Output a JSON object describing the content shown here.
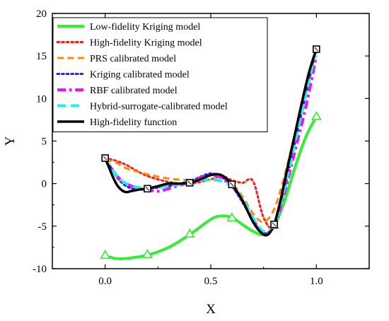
{
  "chart_data": {
    "type": "line",
    "xlabel": "X",
    "ylabel": "Y",
    "xlim": [
      -0.25,
      1.25
    ],
    "ylim": [
      -10,
      20
    ],
    "xticks": [
      0.0,
      0.5,
      1.0
    ],
    "xtick_labels": [
      "0.0",
      "0.5",
      "1.0"
    ],
    "yticks": [
      -10,
      -5,
      0,
      5,
      10,
      15,
      20
    ],
    "ytick_labels": [
      "-10",
      "-5",
      "0",
      "5",
      "10",
      "15",
      "20"
    ],
    "grid": false,
    "legend": "top-left",
    "series": [
      {
        "name": "Low-fidelity Kriging model",
        "color": "#33ee33",
        "style": "solid",
        "width": 4,
        "x": [
          0.0,
          0.05,
          0.1,
          0.2,
          0.3,
          0.4,
          0.5,
          0.55,
          0.6,
          0.65,
          0.7,
          0.75,
          0.8,
          0.85,
          0.9,
          0.95,
          1.0
        ],
        "y": [
          -8.5,
          -8.8,
          -8.8,
          -8.4,
          -7.5,
          -6.0,
          -4.2,
          -3.8,
          -4.0,
          -4.8,
          -5.6,
          -6.0,
          -5.0,
          -2.0,
          2.0,
          5.5,
          7.9
        ]
      },
      {
        "name": "High-fidelity Kriging model",
        "color": "#ee2222",
        "style": "dotted",
        "width": 3,
        "x": [
          0.0,
          0.05,
          0.1,
          0.15,
          0.2,
          0.3,
          0.4,
          0.5,
          0.55,
          0.6,
          0.65,
          0.7,
          0.75,
          0.8,
          0.85,
          0.9,
          0.95,
          1.0
        ],
        "y": [
          3.0,
          2.7,
          2.2,
          1.5,
          0.9,
          0.2,
          0.0,
          0.5,
          0.9,
          0.4,
          0.1,
          0.3,
          -4.0,
          -5.0,
          0.0,
          6.0,
          11.0,
          15.8
        ]
      },
      {
        "name": "PRS calibrated model",
        "color": "#ff8811",
        "style": "dashed",
        "width": 3,
        "x": [
          0.0,
          0.05,
          0.1,
          0.2,
          0.3,
          0.4,
          0.5,
          0.55,
          0.6,
          0.65,
          0.7,
          0.75,
          0.8,
          0.85,
          0.9,
          0.95,
          1.0
        ],
        "y": [
          2.8,
          2.5,
          1.8,
          1.1,
          0.6,
          0.4,
          0.4,
          0.3,
          0.0,
          -1.5,
          -3.5,
          -4.5,
          -3.0,
          1.0,
          6.0,
          11.0,
          15.8
        ]
      },
      {
        "name": "Kriging calibrated model",
        "color": "#2222ee",
        "style": "dotted",
        "width": 3,
        "x": [
          0.0,
          0.03,
          0.06,
          0.1,
          0.15,
          0.2,
          0.3,
          0.4,
          0.45,
          0.5,
          0.55,
          0.6,
          0.65,
          0.7,
          0.75,
          0.8,
          0.85,
          0.9,
          0.95,
          1.0
        ],
        "y": [
          3.0,
          1.8,
          0.6,
          -0.3,
          -0.7,
          -0.6,
          -0.3,
          0.3,
          0.8,
          1.2,
          0.8,
          -0.3,
          -2.2,
          -4.3,
          -5.8,
          -5.0,
          -0.5,
          5.0,
          10.5,
          15.8
        ]
      },
      {
        "name": "RBF calibrated model",
        "color": "#ee11ee",
        "style": "dashdot",
        "width": 4,
        "x": [
          0.0,
          0.03,
          0.06,
          0.1,
          0.15,
          0.2,
          0.25,
          0.3,
          0.4,
          0.45,
          0.5,
          0.55,
          0.6,
          0.65,
          0.7,
          0.75,
          0.8,
          0.85,
          0.9,
          0.95,
          1.0
        ],
        "y": [
          3.0,
          1.8,
          0.8,
          0.0,
          -0.5,
          -0.7,
          -0.9,
          -0.6,
          0.2,
          0.7,
          1.0,
          0.7,
          -0.3,
          -2.0,
          -4.2,
          -5.8,
          -5.0,
          -1.0,
          4.0,
          9.0,
          15.0
        ]
      },
      {
        "name": "Hybrid-surrogate-calibrated model",
        "color": "#22eeee",
        "style": "dashed",
        "width": 4,
        "x": [
          0.0,
          0.03,
          0.06,
          0.1,
          0.15,
          0.2,
          0.3,
          0.4,
          0.45,
          0.5,
          0.55,
          0.6,
          0.65,
          0.7,
          0.75,
          0.8,
          0.85,
          0.9,
          0.95,
          1.0
        ],
        "y": [
          3.0,
          1.8,
          0.8,
          0.0,
          -0.4,
          -0.5,
          -0.3,
          0.2,
          0.4,
          0.5,
          0.3,
          -0.3,
          -1.8,
          -4.0,
          -5.6,
          -4.8,
          -0.5,
          5.0,
          10.5,
          15.8
        ]
      },
      {
        "name": "High-fidelity function",
        "color": "#000000",
        "style": "solid",
        "width": 3.5,
        "x": [
          0.0,
          0.02,
          0.04,
          0.06,
          0.08,
          0.1,
          0.12,
          0.14,
          0.16,
          0.2,
          0.25,
          0.3,
          0.35,
          0.4,
          0.45,
          0.5,
          0.55,
          0.6,
          0.65,
          0.7,
          0.74,
          0.77,
          0.8,
          0.83,
          0.86,
          0.9,
          0.94,
          0.97,
          1.0
        ],
        "y": [
          3.0,
          1.8,
          0.6,
          -0.3,
          -0.8,
          -1.0,
          -0.9,
          -0.8,
          -0.7,
          -0.6,
          -0.3,
          0.0,
          0.0,
          0.1,
          0.5,
          1.0,
          1.0,
          -0.1,
          -2.0,
          -4.5,
          -5.8,
          -6.0,
          -4.8,
          -2.0,
          1.5,
          6.0,
          10.5,
          13.5,
          15.8
        ]
      }
    ],
    "markers": [
      {
        "series": "Low-fidelity Kriging model",
        "shape": "triangle",
        "color": "#33ee33",
        "x": [
          0.0,
          0.2,
          0.4,
          0.6,
          0.8,
          1.0
        ],
        "y": [
          -8.4,
          -8.3,
          -5.9,
          -4.0,
          -4.9,
          7.9
        ]
      },
      {
        "series": "High-fidelity function",
        "shape": "square",
        "color": "#000000",
        "x": [
          0.0,
          0.2,
          0.4,
          0.6,
          0.8,
          1.0
        ],
        "y": [
          3.0,
          -0.6,
          0.1,
          -0.1,
          -4.8,
          15.8
        ]
      }
    ]
  }
}
